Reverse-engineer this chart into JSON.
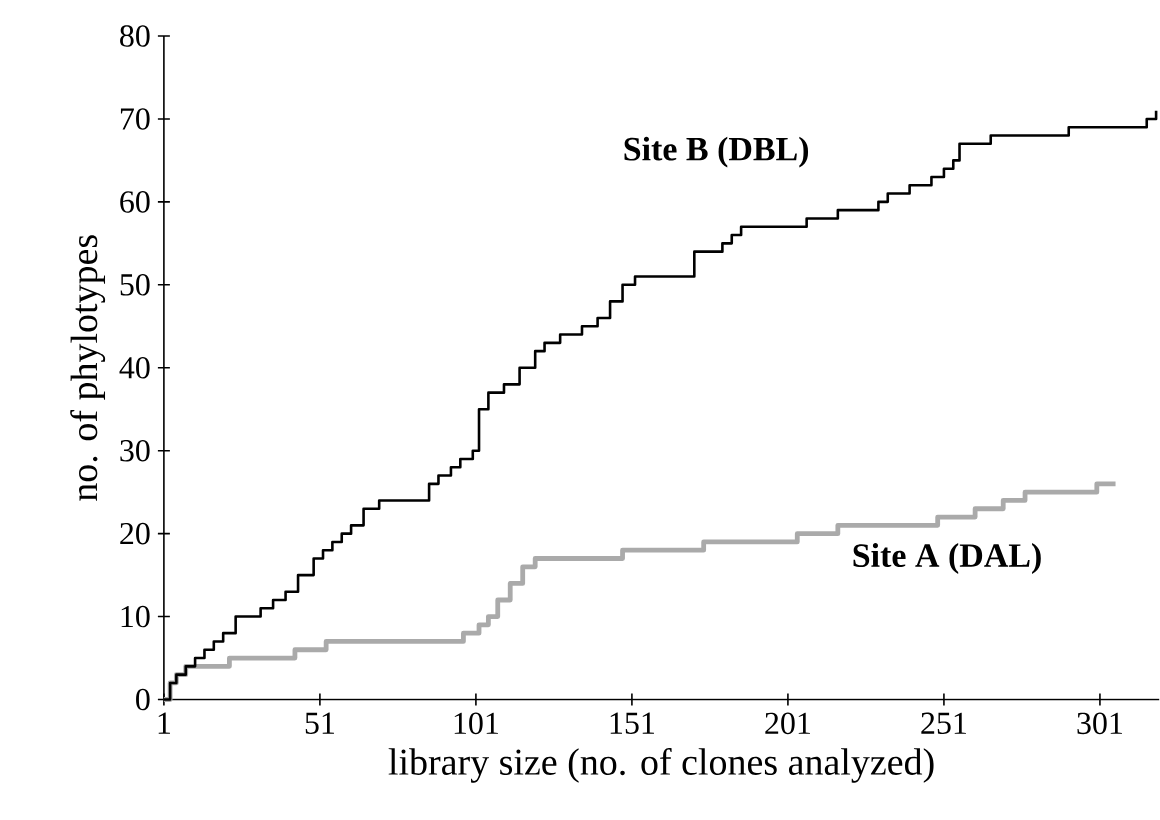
{
  "chart_data": {
    "type": "step",
    "xlabel": "library size (no. of clones analyzed)",
    "ylabel": "no. of phylotypes",
    "xlim": [
      1,
      320
    ],
    "ylim": [
      0,
      80
    ],
    "xticks": [
      1,
      51,
      101,
      151,
      201,
      251,
      301
    ],
    "yticks": [
      0,
      10,
      20,
      30,
      40,
      50,
      60,
      70,
      80
    ],
    "grid": false,
    "legend": false,
    "marker": "none",
    "series": [
      {
        "name": "Site B (DBL)",
        "color": "#000000",
        "x": [
          1,
          3,
          5,
          8,
          11,
          14,
          17,
          20,
          24,
          27,
          32,
          36,
          40,
          44,
          46,
          49,
          52,
          55,
          58,
          61,
          65,
          70,
          72,
          86,
          89,
          93,
          96,
          100,
          102,
          105,
          110,
          115,
          120,
          123,
          128,
          135,
          140,
          144,
          148,
          152,
          169,
          171,
          180,
          183,
          186,
          205,
          207,
          215,
          217,
          230,
          233,
          240,
          247,
          251,
          254,
          256,
          266,
          291,
          316,
          319
        ],
        "values": [
          0,
          2,
          3,
          4,
          5,
          6,
          7,
          8,
          10,
          10,
          11,
          12,
          13,
          15,
          15,
          17,
          18,
          19,
          20,
          21,
          23,
          24,
          24,
          26,
          27,
          28,
          29,
          30,
          35,
          37,
          38,
          40,
          42,
          43,
          44,
          45,
          46,
          48,
          50,
          51,
          51,
          54,
          55,
          56,
          57,
          57,
          58,
          58,
          59,
          60,
          61,
          62,
          63,
          64,
          65,
          67,
          68,
          69,
          70,
          71
        ]
      },
      {
        "name": "Site A (DAL)",
        "color": "#aaaaaa",
        "x": [
          1,
          3,
          5,
          8,
          20,
          22,
          40,
          43,
          50,
          53,
          94,
          97,
          102,
          105,
          108,
          112,
          116,
          120,
          148,
          174,
          204,
          217,
          249,
          261,
          270,
          277,
          300,
          306
        ],
        "values": [
          0,
          2,
          3,
          4,
          4,
          5,
          5,
          6,
          6,
          7,
          7,
          8,
          9,
          10,
          12,
          14,
          16,
          17,
          18,
          19,
          20,
          21,
          22,
          23,
          24,
          25,
          26,
          26
        ]
      }
    ]
  }
}
